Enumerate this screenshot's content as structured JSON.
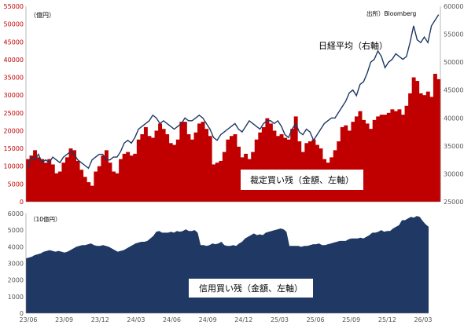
{
  "chart_data": [
    {
      "type": "bar",
      "title": "裁定買い残（金額、左軸）",
      "series": [
        {
          "name": "裁定買い残（金額、左軸）",
          "axis": "left",
          "values": [
            12000,
            13000,
            14500,
            12500,
            12000,
            11000,
            12000,
            10500,
            8000,
            8500,
            11000,
            12500,
            15000,
            14500,
            11500,
            9000,
            7000,
            5500,
            4500,
            8500,
            10000,
            13000,
            14500,
            11000,
            8500,
            8000,
            12000,
            13500,
            14000,
            13000,
            13500,
            17500,
            19000,
            21000,
            18500,
            18000,
            20000,
            22000,
            20500,
            19000,
            16500,
            16000,
            17500,
            22500,
            22500,
            19000,
            17500,
            19500,
            22000,
            22500,
            20500,
            18500,
            10500,
            11000,
            11500,
            14000,
            17500,
            18500,
            19000,
            15500,
            12500,
            13500,
            12000,
            14000,
            17500,
            19500,
            21000,
            23500,
            22000,
            20000,
            18500,
            19000,
            18000,
            17500,
            20500,
            24000,
            17000,
            14000,
            16500,
            17000,
            17500,
            16000,
            15000,
            12000,
            11000,
            12500,
            14500,
            17000,
            21000,
            21500,
            20000,
            22500,
            24000,
            25500,
            23000,
            22000,
            20500,
            23000,
            24000,
            24500,
            24500,
            25000,
            26000,
            25500,
            26000,
            24500,
            27000,
            30500,
            35000,
            34000,
            30500,
            30000,
            31000,
            29500,
            36000,
            34500
          ]
        },
        {
          "name": "日経平均（右軸）",
          "axis": "right",
          "values": [
            31000,
            33000,
            32500,
            33500,
            32000,
            32500,
            32000,
            33000,
            32500,
            32000,
            33000,
            33500,
            34000,
            33500,
            32500,
            32000,
            31500,
            31000,
            32500,
            33000,
            33500,
            33500,
            32500,
            32500,
            33000,
            33000,
            34000,
            35500,
            36000,
            35500,
            36500,
            38000,
            38500,
            39000,
            39500,
            40500,
            40000,
            39000,
            39500,
            39000,
            38500,
            38000,
            38500,
            39000,
            40000,
            39500,
            39500,
            40000,
            40500,
            40000,
            39000,
            38000,
            36500,
            36000,
            37000,
            37500,
            38000,
            38500,
            39000,
            38000,
            37500,
            38500,
            39500,
            39000,
            38500,
            38000,
            39000,
            39500,
            39500,
            39000,
            39500,
            38500,
            37000,
            36500,
            38000,
            39000,
            37500,
            37000,
            38000,
            37500,
            36000,
            37000,
            38000,
            39000,
            39500,
            40000,
            40000,
            41000,
            42000,
            43000,
            44500,
            45000,
            44000,
            46000,
            46500,
            48000,
            50000,
            50500,
            52000,
            51000,
            49000,
            50000,
            50500,
            51500,
            51000,
            50500,
            51000,
            53500,
            56500,
            54000,
            53500,
            54500,
            53500,
            56500,
            57500,
            58500
          ]
        }
      ],
      "left_axis": {
        "min": 0,
        "max": 55000,
        "step": 5000,
        "ticks": [
          "0",
          "5000",
          "10000",
          "15000",
          "20000",
          "25000",
          "30000",
          "35000",
          "40000",
          "45000",
          "50000",
          "55000"
        ]
      },
      "right_axis": {
        "min": 25000,
        "max": 60000,
        "step": 5000,
        "ticks": [
          "25000",
          "30000",
          "35000",
          "40000",
          "45000",
          "50000",
          "55000",
          "60000"
        ]
      },
      "unit_label": "（億円）",
      "source_label": "出所）Bloomberg",
      "line_label": "日経平均（右軸）",
      "box_label": "裁定買い残（金額、左軸）",
      "colors": {
        "bars": "#c00000",
        "line": "#1f3864"
      }
    },
    {
      "type": "area",
      "title": "信用買い残（金額、左軸）",
      "series": [
        {
          "name": "信用買い残（金額、左軸）",
          "values": [
            3300,
            3350,
            3400,
            3500,
            3550,
            3600,
            3700,
            3750,
            3800,
            3750,
            3700,
            3750,
            3700,
            3650,
            3700,
            3800,
            3900,
            4000,
            4050,
            4100,
            4100,
            4150,
            4200,
            4100,
            4050,
            4050,
            4100,
            4050,
            4000,
            3900,
            3800,
            3700,
            3750,
            3800,
            3900,
            4000,
            4100,
            4200,
            4250,
            4300,
            4300,
            4350,
            4500,
            4650,
            4900,
            4950,
            4850,
            4850,
            4850,
            4900,
            4850,
            4950,
            4900,
            4950,
            5050,
            4950,
            4950,
            5000,
            4850,
            4100,
            4100,
            4050,
            4100,
            4200,
            4150,
            4200,
            4300,
            4100,
            4050,
            4050,
            4100,
            4050,
            4200,
            4300,
            4500,
            4600,
            4700,
            4800,
            4700,
            4750,
            4700,
            4850,
            4900,
            4950,
            5000,
            5050,
            5100,
            5050,
            4900,
            4050,
            4050,
            4050,
            4050,
            4000,
            4050,
            4050,
            4100,
            4150,
            4150,
            4200,
            4100,
            4100,
            4150,
            4200,
            4250,
            4300,
            4350,
            4350,
            4350,
            4450,
            4500,
            4500,
            4500,
            4550,
            4500,
            4600,
            4700,
            4850,
            4850,
            4900,
            5000,
            4900,
            4950,
            4950,
            5100,
            5200,
            5300,
            5600,
            5600,
            5700,
            5800,
            5750,
            5850,
            5800,
            5550,
            5350,
            5200
          ]
        }
      ],
      "y_axis": {
        "min": 0,
        "max": 6000,
        "step": 1000,
        "ticks": [
          "0",
          "1000",
          "2000",
          "3000",
          "4000",
          "5000",
          "6000"
        ]
      },
      "unit_label": "（10億円）",
      "box_label": "信用買い残（金額、左軸）",
      "x_ticks": [
        "23/06",
        "23/09",
        "23/12",
        "24/03",
        "24/06",
        "24/09",
        "24/12",
        "25/03",
        "25/06",
        "25/09",
        "25/12",
        "26/03"
      ],
      "colors": {
        "area": "#1f3864"
      }
    }
  ]
}
